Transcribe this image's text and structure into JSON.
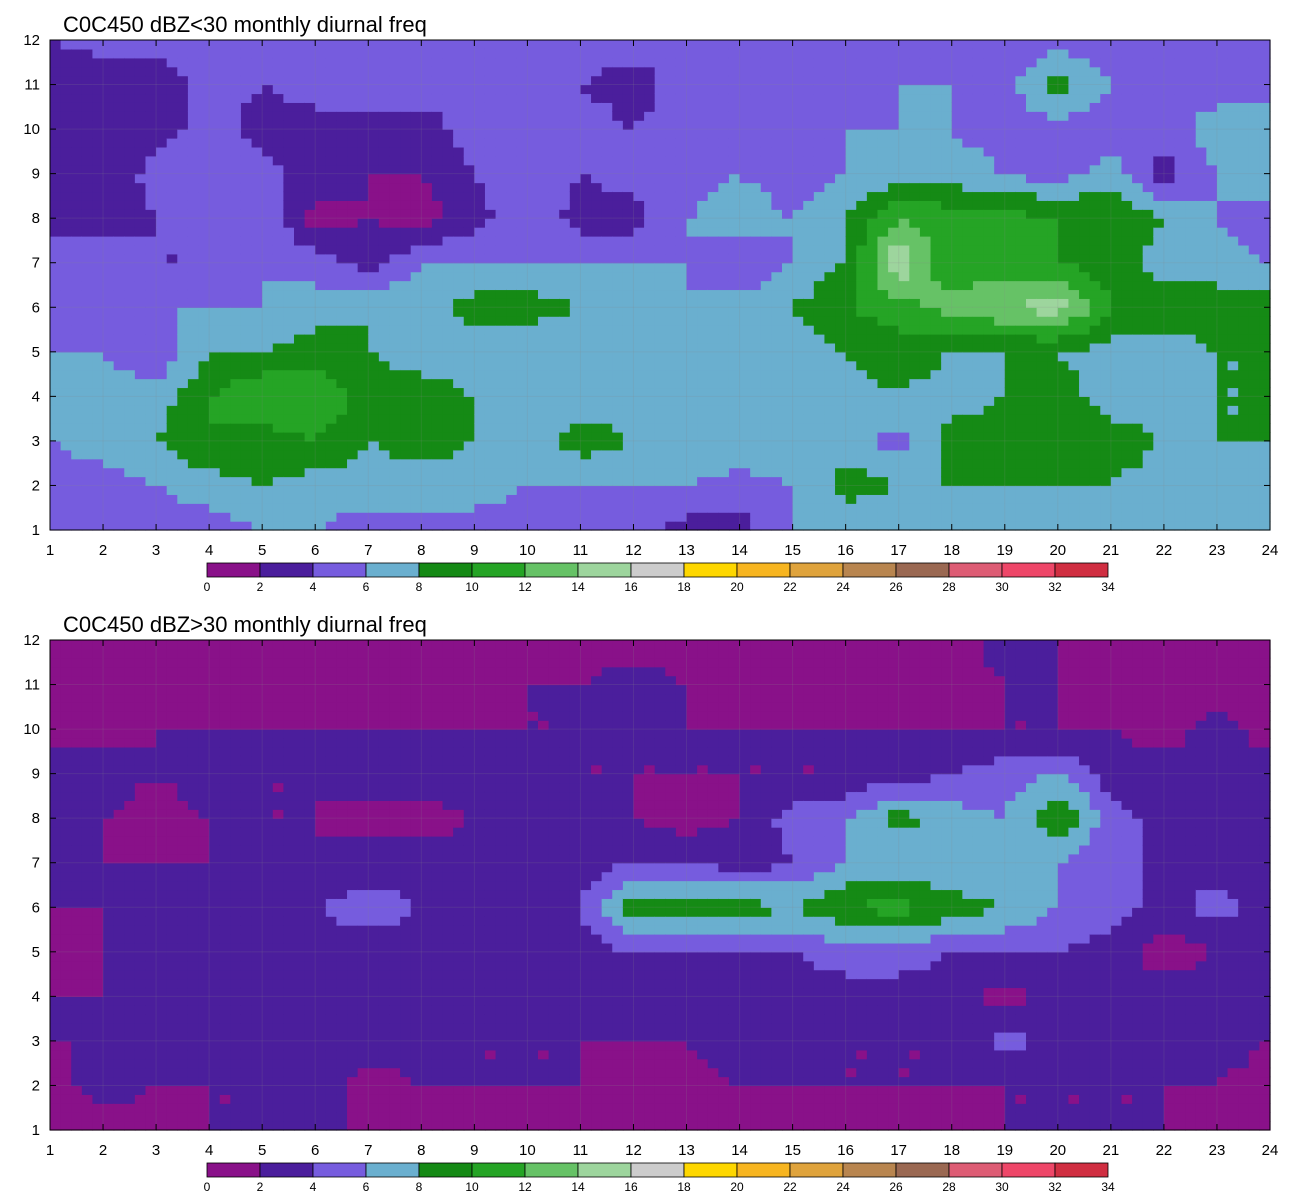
{
  "chart_data": [
    {
      "type": "heatmap",
      "subtype": "filled-contour",
      "title": "C0C450 dBZ<30 monthly diurnal freq",
      "xlabel": "",
      "ylabel": "",
      "x_ticks": [
        1,
        2,
        3,
        4,
        5,
        6,
        7,
        8,
        9,
        10,
        11,
        12,
        13,
        14,
        15,
        16,
        17,
        18,
        19,
        20,
        21,
        22,
        23,
        24
      ],
      "y_ticks": [
        1,
        2,
        3,
        4,
        5,
        6,
        7,
        8,
        9,
        10,
        11,
        12
      ],
      "xlim": [
        1,
        24
      ],
      "ylim": [
        1,
        12
      ],
      "colorbar_levels": [
        0,
        2,
        4,
        6,
        8,
        10,
        12,
        14,
        16,
        18,
        20,
        22,
        24,
        26,
        28,
        30,
        32,
        34
      ],
      "z": [
        [
          5,
          5,
          6,
          6,
          6,
          5,
          4,
          4,
          3,
          2,
          2,
          4
        ],
        [
          6,
          5,
          7,
          7,
          6,
          6,
          5,
          3,
          2,
          2,
          2,
          5
        ],
        [
          5,
          6,
          8,
          7,
          4,
          6,
          4,
          4,
          5,
          3,
          2,
          5
        ],
        [
          5,
          7,
          10,
          10,
          8,
          6,
          4,
          4,
          5,
          5,
          5,
          6
        ],
        [
          6,
          8,
          9,
          12,
          8,
          6,
          6,
          6,
          5,
          3,
          4,
          5
        ],
        [
          6,
          7,
          10,
          12,
          9,
          7,
          5,
          1,
          3,
          3,
          5,
          6
        ],
        [
          5,
          7,
          8,
          9,
          8,
          8,
          3,
          2,
          2,
          3,
          5,
          6
        ],
        [
          5,
          7,
          9,
          9,
          7,
          7,
          6,
          1,
          2,
          3,
          5,
          5
        ],
        [
          5,
          7,
          8,
          8,
          7,
          9,
          6,
          3,
          4,
          5,
          4,
          5
        ],
        [
          5,
          6,
          7,
          7,
          6,
          9,
          6,
          6,
          5,
          4,
          5,
          5
        ],
        [
          6,
          6,
          9,
          7,
          6,
          8,
          6,
          3,
          4,
          5,
          4,
          5
        ],
        [
          5,
          6,
          8,
          7,
          7,
          6,
          6,
          3,
          5,
          4,
          3,
          5
        ],
        [
          3,
          6,
          7,
          7,
          7,
          6,
          6,
          6,
          5,
          5,
          5,
          4
        ],
        [
          3,
          5,
          8,
          7,
          6,
          7,
          4,
          7,
          6,
          5,
          5,
          5
        ],
        [
          6,
          6,
          7,
          6,
          6,
          8,
          6,
          6,
          5,
          5,
          5,
          5
        ],
        [
          6,
          9,
          7,
          7,
          8,
          10,
          8,
          8,
          6,
          6,
          5,
          5
        ],
        [
          6,
          8,
          5,
          8,
          9,
          11,
          16,
          12,
          7,
          6,
          6,
          5
        ],
        [
          6,
          8,
          9,
          7,
          8,
          13,
          10,
          11,
          7,
          6,
          6,
          5
        ],
        [
          6,
          8,
          9,
          8,
          8,
          14,
          11,
          11,
          6,
          5,
          5,
          4
        ],
        [
          6,
          8,
          10,
          9,
          8,
          15,
          10,
          10,
          5,
          5,
          9,
          5
        ],
        [
          6,
          8,
          9,
          7,
          7,
          10,
          9,
          10,
          7,
          5,
          6,
          5
        ],
        [
          6,
          7,
          8,
          7,
          7,
          9,
          7,
          8,
          3,
          5,
          6,
          5
        ],
        [
          6,
          8,
          8,
          8,
          8,
          9,
          7,
          6,
          6,
          7,
          5,
          5
        ],
        [
          6,
          7,
          8,
          8,
          8,
          9,
          6,
          4,
          8,
          7,
          5,
          5
        ]
      ]
    },
    {
      "type": "heatmap",
      "subtype": "filled-contour",
      "title": "C0C450 dBZ>30 monthly diurnal freq",
      "xlabel": "",
      "ylabel": "",
      "x_ticks": [
        1,
        2,
        3,
        4,
        5,
        6,
        7,
        8,
        9,
        10,
        11,
        12,
        13,
        14,
        15,
        16,
        17,
        18,
        19,
        20,
        21,
        22,
        23,
        24
      ],
      "y_ticks": [
        1,
        2,
        3,
        4,
        5,
        6,
        7,
        8,
        9,
        10,
        11,
        12
      ],
      "xlim": [
        1,
        24
      ],
      "ylim": [
        1,
        12
      ],
      "colorbar_levels": [
        0,
        2,
        4,
        6,
        8,
        10,
        12,
        14,
        16,
        18,
        20,
        22,
        24,
        26,
        28,
        30,
        32,
        34
      ],
      "z": [
        [
          1,
          1,
          2,
          2,
          1,
          2,
          2,
          2,
          3,
          1,
          1,
          1
        ],
        [
          1,
          3,
          2,
          2,
          2,
          2,
          2,
          2,
          3,
          1,
          1,
          1
        ],
        [
          1,
          2,
          3,
          2,
          2,
          2,
          2,
          1,
          2,
          2,
          1,
          1
        ],
        [
          2,
          2,
          3,
          3,
          2,
          3,
          2,
          2,
          3,
          2,
          1,
          1
        ],
        [
          2,
          2,
          3,
          3,
          3,
          4,
          3,
          2,
          2,
          2,
          1,
          1
        ],
        [
          2,
          3,
          4,
          3,
          3,
          4,
          2,
          2,
          2,
          2,
          1,
          1
        ],
        [
          2,
          1,
          3,
          3,
          3,
          5,
          3,
          1,
          3,
          2,
          1,
          1
        ],
        [
          1,
          2,
          3,
          3,
          3,
          4,
          3,
          1,
          3,
          2,
          1,
          1
        ],
        [
          1,
          2,
          2,
          3,
          2,
          4,
          3,
          2,
          4,
          2,
          1,
          1
        ],
        [
          1,
          2,
          2,
          3,
          3,
          4,
          3,
          2,
          3,
          2,
          2,
          1
        ],
        [
          1,
          2,
          2,
          3,
          3,
          4,
          3,
          2,
          2,
          2,
          2,
          1
        ],
        [
          1,
          1,
          2,
          3,
          4,
          9,
          4,
          2,
          2,
          2,
          3,
          1
        ],
        [
          1,
          1,
          2,
          3,
          4,
          9,
          4,
          1,
          2,
          2,
          2,
          1
        ],
        [
          1,
          2,
          3,
          3,
          4,
          9,
          3,
          2,
          2,
          2,
          1,
          1
        ],
        [
          1,
          2,
          3,
          3,
          4,
          8,
          4,
          5,
          2,
          2,
          1,
          1
        ],
        [
          1,
          2,
          2,
          3,
          5,
          10,
          6,
          6,
          2,
          2,
          1,
          1
        ],
        [
          1,
          2,
          2,
          3,
          5,
          11,
          6,
          9,
          3,
          2,
          1,
          1
        ],
        [
          1,
          2,
          2,
          3,
          4,
          9,
          6,
          7,
          4,
          2,
          1,
          1
        ],
        [
          2,
          2,
          5,
          1,
          4,
          8,
          6,
          6,
          5,
          2,
          2,
          3
        ],
        [
          2,
          2,
          3,
          3,
          4,
          6,
          6,
          10,
          6,
          2,
          2,
          2
        ],
        [
          2,
          2,
          3,
          2,
          3,
          5,
          4,
          5,
          3,
          2,
          1,
          1
        ],
        [
          2,
          2,
          3,
          3,
          1,
          3,
          4,
          3,
          3,
          1,
          1,
          1
        ],
        [
          1,
          2,
          3,
          3,
          2,
          5,
          3,
          3,
          2,
          3,
          1,
          1
        ],
        [
          1,
          1,
          2,
          3,
          2,
          3,
          3,
          3,
          3,
          1,
          1,
          1
        ]
      ]
    }
  ],
  "colorbar": {
    "colors": [
      "#891189",
      "#4b1e9c",
      "#765cde",
      "#6aafcf",
      "#158a15",
      "#25a425",
      "#66c266",
      "#9dd59d",
      "#cccccc",
      "#fed700",
      "#f7b520",
      "#dfa33c",
      "#b8854f",
      "#9a6852",
      "#dd5c74",
      "#ee4668",
      "#d02e41"
    ],
    "labels": [
      "0",
      "2",
      "4",
      "6",
      "8",
      "10",
      "12",
      "14",
      "16",
      "18",
      "20",
      "22",
      "24",
      "26",
      "28",
      "30",
      "32",
      "34"
    ]
  }
}
